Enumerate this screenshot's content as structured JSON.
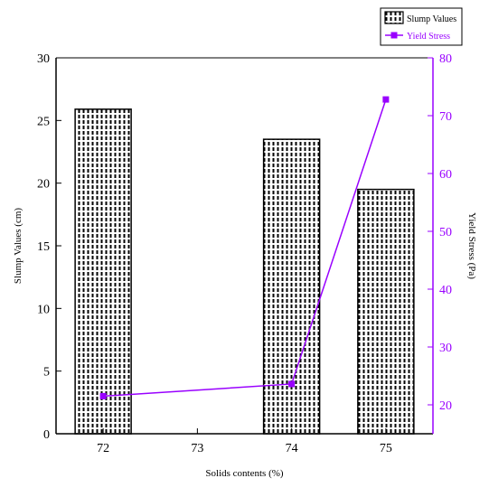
{
  "colors": {
    "axis": "#000000",
    "yield_stress": "#9900ff",
    "bar_fill": "#ffffff",
    "bar_pattern": "#000000"
  },
  "chart_data": {
    "type": "bar",
    "categories": [
      "72",
      "73",
      "74",
      "75"
    ],
    "x": [
      72,
      73,
      74,
      75
    ],
    "xlabel": "Solids contents (%)",
    "ylabel": "Slump Values (cm)",
    "ylabel_right": "Yield Stress (Pa)",
    "ylim": [
      0,
      30
    ],
    "ylim_right": [
      15,
      80
    ],
    "yticks": [
      0,
      5,
      10,
      15,
      20,
      25,
      30
    ],
    "yticks_right": [
      20,
      30,
      40,
      50,
      60,
      70,
      80
    ],
    "legend_position": "top-right",
    "grid": false,
    "series": [
      {
        "name": "Slump Values",
        "kind": "bar",
        "axis": "left",
        "x": [
          72,
          74,
          75
        ],
        "values": [
          25.9,
          23.5,
          19.5
        ]
      },
      {
        "name": "Yield Stress",
        "kind": "line",
        "axis": "right",
        "x": [
          72,
          74,
          75
        ],
        "values": [
          21.5,
          23.6,
          72.8
        ]
      }
    ]
  }
}
